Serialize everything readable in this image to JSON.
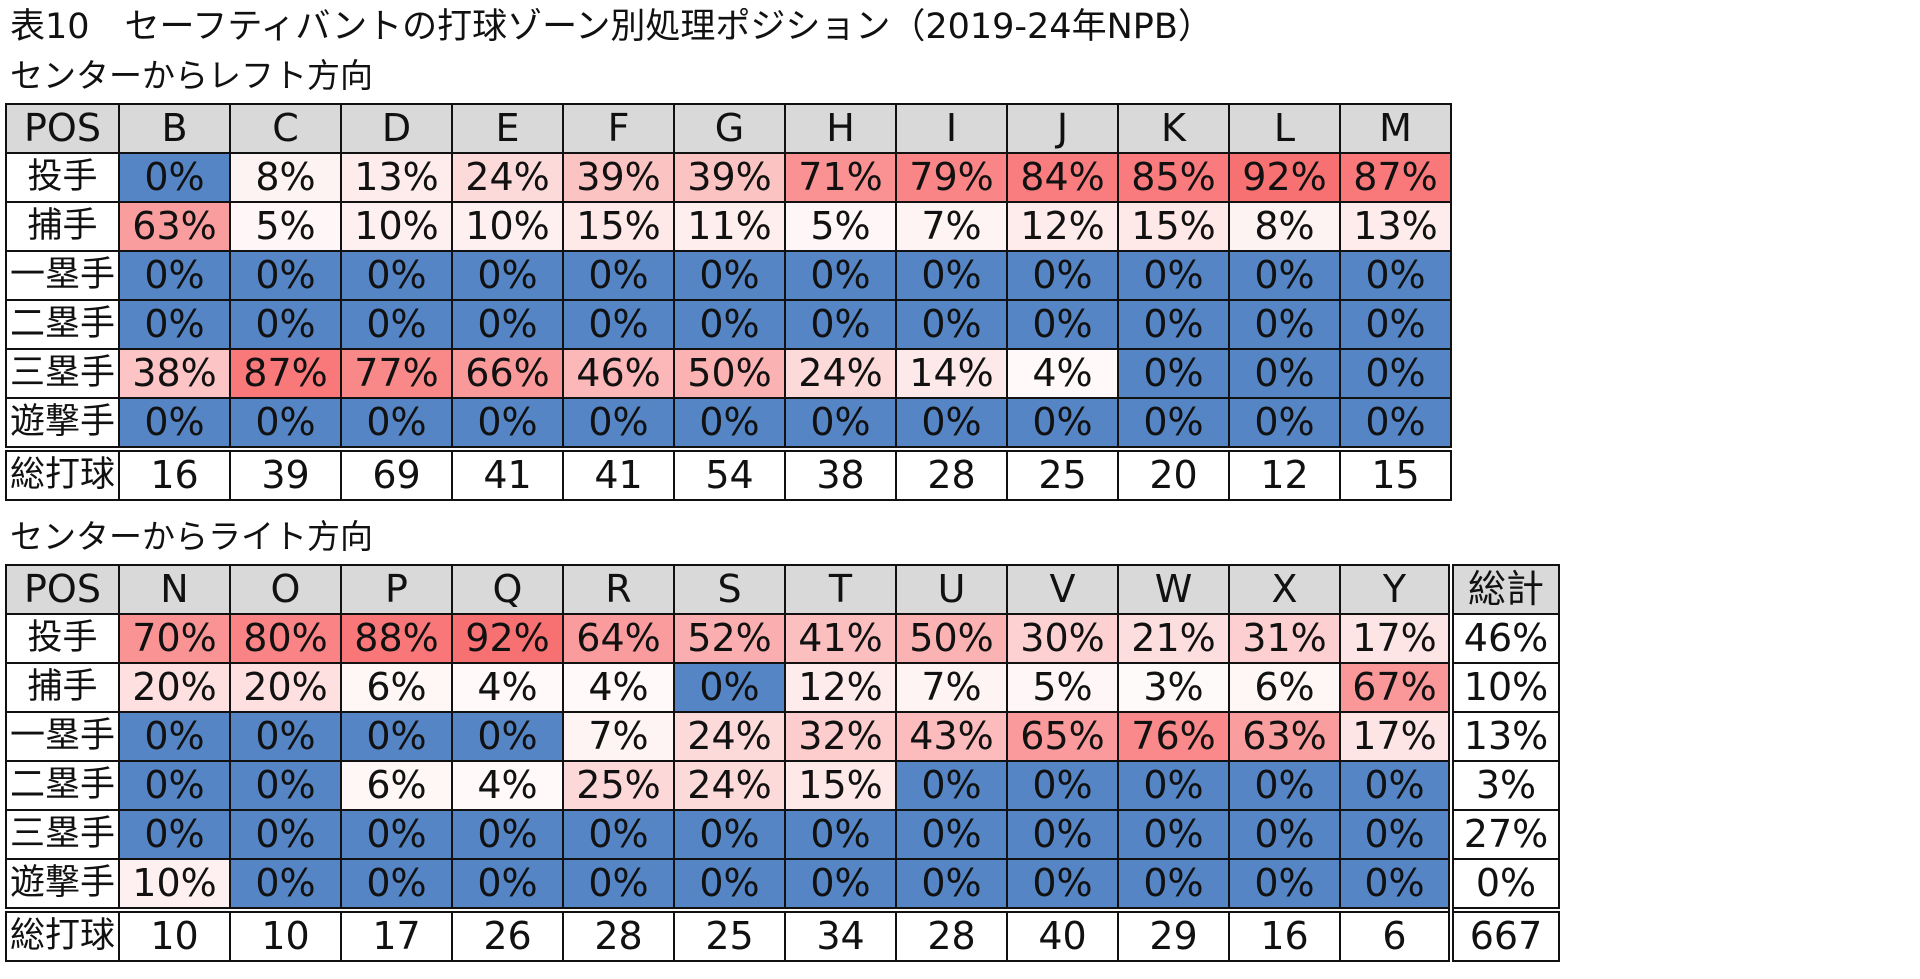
{
  "title": "表10　セーフティバントの打球ゾーン別処理ポジション（2019-24年NPB）",
  "tables": [
    {
      "subtitle": "センターからレフト方向",
      "header": [
        "POS",
        "B",
        "C",
        "D",
        "E",
        "F",
        "G",
        "H",
        "I",
        "J",
        "K",
        "L",
        "M"
      ],
      "rows": [
        {
          "label": "投手",
          "values": [
            "0%",
            "8%",
            "13%",
            "24%",
            "39%",
            "39%",
            "71%",
            "79%",
            "84%",
            "85%",
            "92%",
            "87%"
          ]
        },
        {
          "label": "捕手",
          "values": [
            "63%",
            "5%",
            "10%",
            "10%",
            "15%",
            "11%",
            "5%",
            "7%",
            "12%",
            "15%",
            "8%",
            "13%"
          ]
        },
        {
          "label": "一塁手",
          "values": [
            "0%",
            "0%",
            "0%",
            "0%",
            "0%",
            "0%",
            "0%",
            "0%",
            "0%",
            "0%",
            "0%",
            "0%"
          ]
        },
        {
          "label": "二塁手",
          "values": [
            "0%",
            "0%",
            "0%",
            "0%",
            "0%",
            "0%",
            "0%",
            "0%",
            "0%",
            "0%",
            "0%",
            "0%"
          ]
        },
        {
          "label": "三塁手",
          "values": [
            "38%",
            "87%",
            "77%",
            "66%",
            "46%",
            "50%",
            "24%",
            "14%",
            "4%",
            "0%",
            "0%",
            "0%"
          ]
        },
        {
          "label": "遊撃手",
          "values": [
            "0%",
            "0%",
            "0%",
            "0%",
            "0%",
            "0%",
            "0%",
            "0%",
            "0%",
            "0%",
            "0%",
            "0%"
          ]
        }
      ],
      "total": {
        "label": "総打球",
        "values": [
          "16",
          "39",
          "69",
          "41",
          "41",
          "54",
          "38",
          "28",
          "25",
          "20",
          "12",
          "15"
        ]
      }
    },
    {
      "subtitle": "センターからライト方向",
      "header": [
        "POS",
        "N",
        "O",
        "P",
        "Q",
        "R",
        "S",
        "T",
        "U",
        "V",
        "W",
        "X",
        "Y",
        "総計"
      ],
      "rows": [
        {
          "label": "投手",
          "values": [
            "70%",
            "80%",
            "88%",
            "92%",
            "64%",
            "52%",
            "41%",
            "50%",
            "30%",
            "21%",
            "31%",
            "17%",
            "46%"
          ]
        },
        {
          "label": "捕手",
          "values": [
            "20%",
            "20%",
            "6%",
            "4%",
            "4%",
            "0%",
            "12%",
            "7%",
            "5%",
            "3%",
            "6%",
            "67%",
            "10%"
          ]
        },
        {
          "label": "一塁手",
          "values": [
            "0%",
            "0%",
            "0%",
            "0%",
            "7%",
            "24%",
            "32%",
            "43%",
            "65%",
            "76%",
            "63%",
            "17%",
            "13%"
          ]
        },
        {
          "label": "二塁手",
          "values": [
            "0%",
            "0%",
            "6%",
            "4%",
            "25%",
            "24%",
            "15%",
            "0%",
            "0%",
            "0%",
            "0%",
            "0%",
            "3%"
          ]
        },
        {
          "label": "三塁手",
          "values": [
            "0%",
            "0%",
            "0%",
            "0%",
            "0%",
            "0%",
            "0%",
            "0%",
            "0%",
            "0%",
            "0%",
            "0%",
            "27%"
          ]
        },
        {
          "label": "遊撃手",
          "values": [
            "10%",
            "0%",
            "0%",
            "0%",
            "0%",
            "0%",
            "0%",
            "0%",
            "0%",
            "0%",
            "0%",
            "0%",
            "0%"
          ]
        }
      ],
      "total": {
        "label": "総打球",
        "values": [
          "10",
          "10",
          "17",
          "26",
          "28",
          "25",
          "34",
          "28",
          "40",
          "29",
          "16",
          "6",
          "667"
        ]
      }
    }
  ],
  "colors": {
    "zero_cell": "#5585c5",
    "heat_low": "#ffffff",
    "heat_high": "#f8696b",
    "header_bg": "#d9d9d9"
  }
}
